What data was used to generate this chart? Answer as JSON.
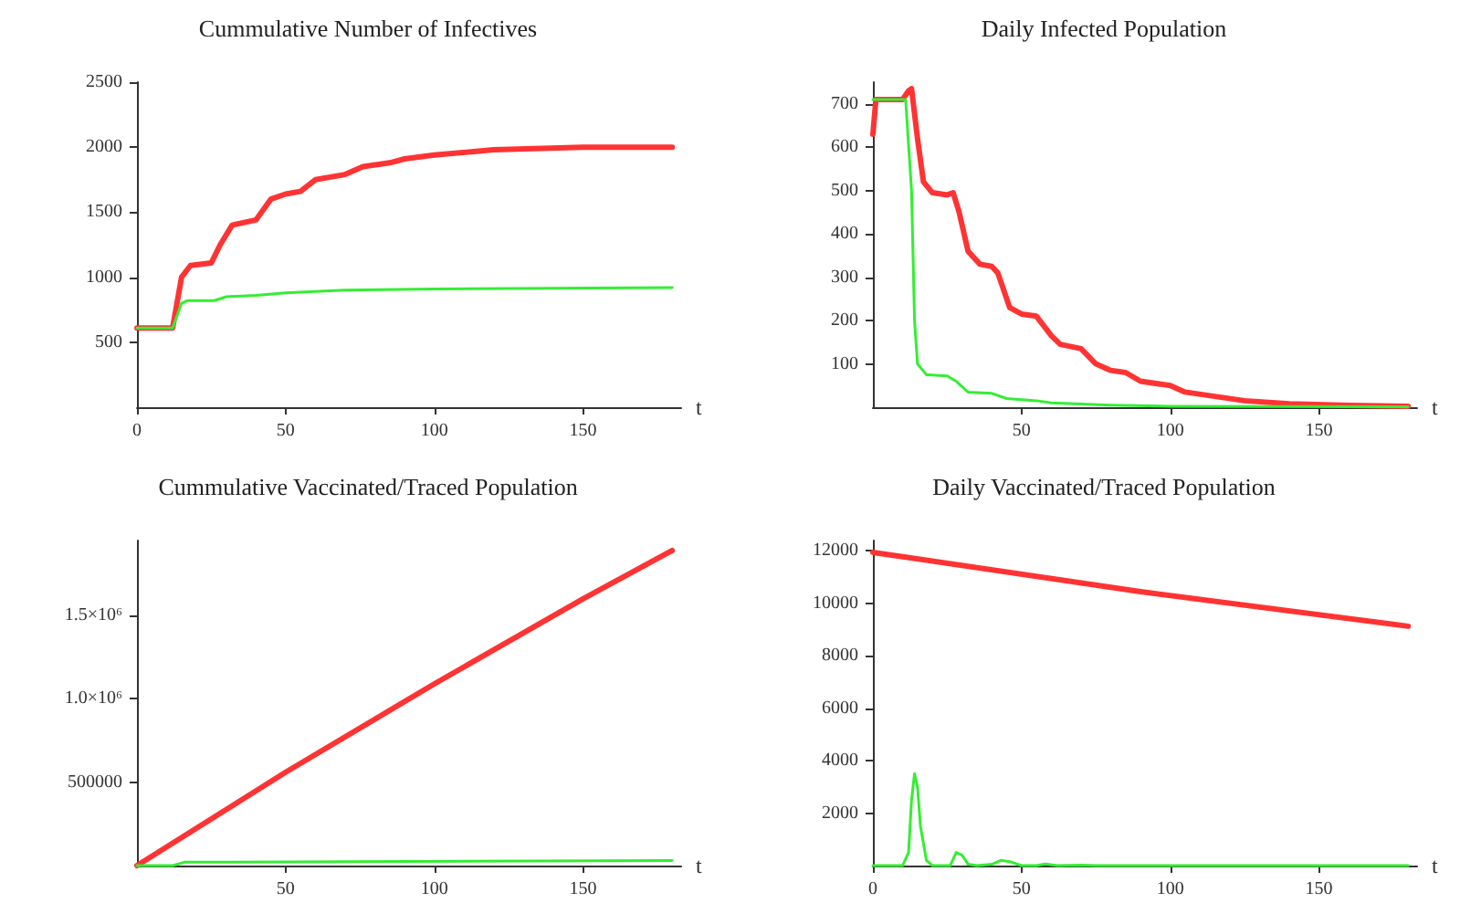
{
  "chart_data": [
    {
      "type": "line",
      "title": "Cummulative Number of Infectives",
      "xlabel": "t",
      "xlim": [
        0,
        183
      ],
      "xticks": [
        0,
        50,
        100,
        150
      ],
      "ylim": [
        0,
        2500
      ],
      "yticks": [
        500,
        1000,
        1500,
        2000,
        2500
      ],
      "grid": false,
      "marker": "none",
      "line_style": "solid",
      "series": [
        {
          "color": "#ff3333",
          "x": [
            0,
            12,
            15,
            18,
            25,
            28,
            32,
            40,
            45,
            50,
            55,
            60,
            70,
            76,
            85,
            90,
            100,
            120,
            150,
            180
          ],
          "values": [
            610,
            610,
            1000,
            1090,
            1110,
            1250,
            1400,
            1440,
            1600,
            1640,
            1660,
            1750,
            1790,
            1850,
            1880,
            1910,
            1940,
            1980,
            2000,
            2000
          ]
        },
        {
          "color": "#33ee33",
          "x": [
            0,
            12,
            15,
            17,
            26,
            30,
            40,
            50,
            70,
            100,
            180
          ],
          "values": [
            610,
            610,
            800,
            820,
            820,
            850,
            860,
            880,
            900,
            910,
            920
          ]
        }
      ]
    },
    {
      "type": "line",
      "title": "Daily Infected Population",
      "xlabel": "t",
      "xlim": [
        0,
        183
      ],
      "xticks": [
        50,
        100,
        150
      ],
      "ylim": [
        0,
        750
      ],
      "yticks": [
        100,
        200,
        300,
        400,
        500,
        600,
        700
      ],
      "grid": false,
      "marker": "none",
      "line_style": "solid",
      "series": [
        {
          "color": "#ff3333",
          "x": [
            0,
            1,
            10,
            12,
            13,
            15,
            17,
            20,
            25,
            27,
            29,
            32,
            36,
            40,
            42,
            46,
            50,
            55,
            60,
            63,
            70,
            75,
            80,
            85,
            90,
            100,
            105,
            115,
            125,
            140,
            160,
            180
          ],
          "values": [
            630,
            710,
            710,
            730,
            735,
            620,
            520,
            495,
            490,
            495,
            450,
            360,
            330,
            325,
            310,
            230,
            215,
            210,
            165,
            145,
            135,
            100,
            85,
            80,
            60,
            50,
            35,
            25,
            15,
            8,
            4,
            2
          ]
        },
        {
          "color": "#33ee33",
          "x": [
            0,
            11,
            13,
            14,
            15,
            18,
            25,
            28,
            32,
            40,
            45,
            55,
            60,
            80,
            100,
            180
          ],
          "values": [
            710,
            710,
            500,
            200,
            100,
            75,
            72,
            60,
            35,
            32,
            20,
            15,
            10,
            5,
            2,
            1
          ]
        }
      ]
    },
    {
      "type": "line",
      "title": "Cummulative Vaccinated/Traced Population",
      "xlabel": "t",
      "xlim": [
        0,
        183
      ],
      "xticks": [
        50,
        100,
        150
      ],
      "ylim": [
        0,
        1950000
      ],
      "yticks": [
        500000,
        {
          "value": 1000000,
          "label": "1.0×10⁶"
        },
        {
          "value": 1500000,
          "label": "1.5×10⁶"
        }
      ],
      "grid": false,
      "marker": "none",
      "line_style": "solid",
      "series": [
        {
          "color": "#ff3333",
          "x": [
            0,
            50,
            100,
            150,
            180
          ],
          "values": [
            0,
            560000,
            1090000,
            1600000,
            1890000
          ]
        },
        {
          "color": "#33ee33",
          "x": [
            0,
            12,
            16,
            180
          ],
          "values": [
            0,
            0,
            20000,
            30000
          ]
        }
      ]
    },
    {
      "type": "line",
      "title": "Daily Vaccinated/Traced Population",
      "xlabel": "t",
      "xlim": [
        0,
        183
      ],
      "xticks": [
        0,
        50,
        100,
        150
      ],
      "ylim": [
        0,
        12400
      ],
      "yticks": [
        2000,
        4000,
        6000,
        8000,
        10000,
        12000
      ],
      "grid": false,
      "marker": "none",
      "line_style": "solid",
      "series": [
        {
          "color": "#ff3333",
          "x": [
            0,
            90,
            180
          ],
          "values": [
            11950,
            10450,
            9130
          ]
        },
        {
          "color": "#33ee33",
          "x": [
            0,
            10,
            12,
            13,
            14,
            15,
            16,
            18,
            20,
            26,
            28,
            30,
            32,
            35,
            40,
            43,
            46,
            50,
            55,
            58,
            62,
            70,
            75,
            180
          ],
          "values": [
            0,
            0,
            500,
            2500,
            3500,
            3000,
            1500,
            200,
            0,
            0,
            500,
            400,
            50,
            0,
            50,
            200,
            150,
            0,
            0,
            60,
            0,
            20,
            0,
            0
          ]
        }
      ]
    }
  ]
}
